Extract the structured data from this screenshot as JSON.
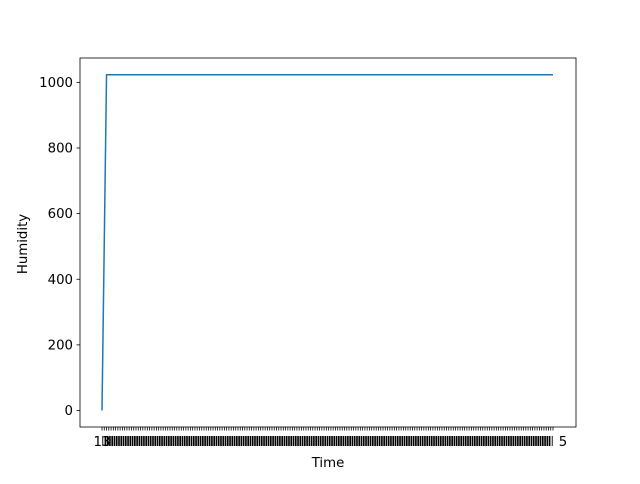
{
  "chart_data": {
    "type": "line",
    "title": "",
    "xlabel": "Time",
    "ylabel": "Humidity",
    "x_tick_first_label": "13",
    "x_tick_last_label": "5",
    "x_tick_count": 200,
    "yticks": [
      0,
      200,
      400,
      600,
      800,
      1000
    ],
    "ylim": [
      -50.2,
      1074.2
    ],
    "grid": false,
    "legend": "none",
    "line_color": "#1f77b4",
    "series": [
      {
        "x_index": [
          0,
          2,
          199
        ],
        "values": [
          0,
          1023,
          1023
        ]
      }
    ]
  }
}
